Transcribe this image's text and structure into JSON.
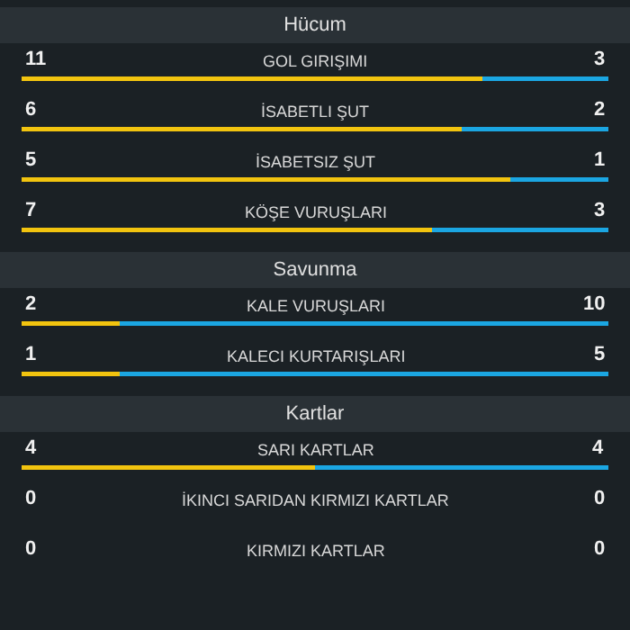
{
  "chart_data": [
    {
      "type": "bar",
      "title": "Hücum",
      "orientation": "horizontal",
      "stacked": true,
      "data_labels": true,
      "tick_labels": false,
      "categories": [
        "GOL GIRIŞIMI"
      ],
      "series": [
        {
          "color": "#f2c40f",
          "values": [
            11
          ]
        },
        {
          "color": "#1ba6e2",
          "values": [
            3
          ]
        }
      ]
    },
    {
      "type": "bar",
      "orientation": "horizontal",
      "stacked": true,
      "data_labels": true,
      "tick_labels": false,
      "categories": [
        "İSABETLI ŞUT"
      ],
      "series": [
        {
          "color": "#f2c40f",
          "values": [
            6
          ]
        },
        {
          "color": "#1ba6e2",
          "values": [
            2
          ]
        }
      ]
    },
    {
      "type": "bar",
      "orientation": "horizontal",
      "stacked": true,
      "data_labels": true,
      "tick_labels": false,
      "categories": [
        "İSABETSIZ ŞUT"
      ],
      "series": [
        {
          "color": "#f2c40f",
          "values": [
            5
          ]
        },
        {
          "color": "#1ba6e2",
          "values": [
            1
          ]
        }
      ]
    },
    {
      "type": "bar",
      "orientation": "horizontal",
      "stacked": true,
      "data_labels": true,
      "tick_labels": false,
      "categories": [
        "KÖŞE VURUŞLARI"
      ],
      "series": [
        {
          "color": "#f2c40f",
          "values": [
            7
          ]
        },
        {
          "color": "#1ba6e2",
          "values": [
            3
          ]
        }
      ]
    },
    {
      "type": "bar",
      "title": "Savunma",
      "orientation": "horizontal",
      "stacked": true,
      "data_labels": true,
      "tick_labels": false,
      "categories": [
        "KALE VURUŞLARI"
      ],
      "series": [
        {
          "color": "#f2c40f",
          "values": [
            2
          ]
        },
        {
          "color": "#1ba6e2",
          "values": [
            10
          ]
        }
      ]
    },
    {
      "type": "bar",
      "orientation": "horizontal",
      "stacked": true,
      "data_labels": true,
      "tick_labels": false,
      "categories": [
        "KALECI KURTARIŞLARI"
      ],
      "series": [
        {
          "color": "#f2c40f",
          "values": [
            1
          ]
        },
        {
          "color": "#1ba6e2",
          "values": [
            5
          ]
        }
      ]
    },
    {
      "type": "bar",
      "title": "Kartlar",
      "orientation": "horizontal",
      "stacked": true,
      "data_labels": true,
      "tick_labels": false,
      "categories": [
        "SARI KARTLAR"
      ],
      "series": [
        {
          "color": "#f2c40f",
          "values": [
            4
          ]
        },
        {
          "color": "#1ba6e2",
          "values": [
            4
          ]
        }
      ]
    },
    {
      "type": "other",
      "data_labels": true,
      "categories": [
        "İKINCI SARIDAN KIRMIZI KARTLAR"
      ],
      "series": [
        {
          "color": "#f2c40f",
          "values": [
            0
          ]
        },
        {
          "color": "#1ba6e2",
          "values": [
            0
          ]
        }
      ]
    },
    {
      "type": "other",
      "data_labels": true,
      "categories": [
        "KIRMIZI KARTLAR"
      ],
      "series": [
        {
          "color": "#f2c40f",
          "values": [
            0
          ]
        },
        {
          "color": "#1ba6e2",
          "values": [
            0
          ]
        }
      ]
    }
  ]
}
